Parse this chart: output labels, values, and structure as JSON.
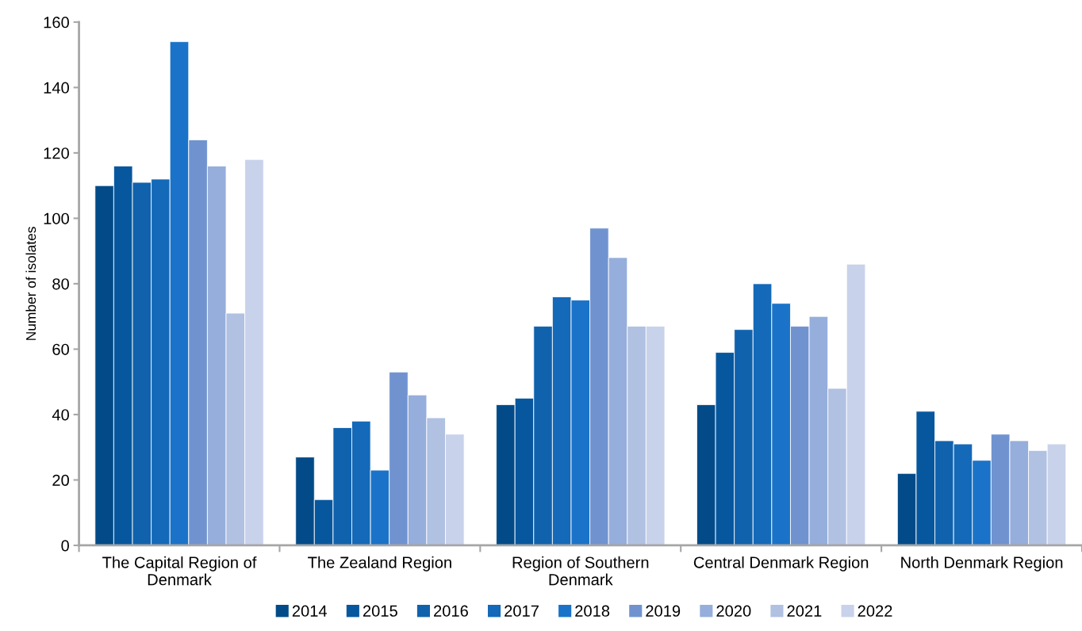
{
  "chart_data": {
    "type": "bar",
    "ylabel": "Number of isolates",
    "categories": [
      "The Capital Region of\nDenmark",
      "The Zealand Region",
      "Region of Southern\nDenmark",
      "Central Denmark Region",
      "North Denmark Region"
    ],
    "series": [
      {
        "name": "2014",
        "color": "#024b88",
        "values": [
          110,
          27,
          43,
          43,
          22
        ]
      },
      {
        "name": "2015",
        "color": "#07579e",
        "values": [
          116,
          14,
          45,
          59,
          41
        ]
      },
      {
        "name": "2016",
        "color": "#1062ad",
        "values": [
          111,
          36,
          67,
          66,
          32
        ]
      },
      {
        "name": "2017",
        "color": "#1469b8",
        "values": [
          112,
          38,
          76,
          80,
          31
        ]
      },
      {
        "name": "2018",
        "color": "#1a73c8",
        "values": [
          154,
          23,
          75,
          74,
          26
        ]
      },
      {
        "name": "2019",
        "color": "#7093d0",
        "values": [
          124,
          53,
          97,
          67,
          34
        ]
      },
      {
        "name": "2020",
        "color": "#96aedb",
        "values": [
          116,
          46,
          88,
          70,
          32
        ]
      },
      {
        "name": "2021",
        "color": "#b0c1e2",
        "values": [
          71,
          39,
          67,
          48,
          29
        ]
      },
      {
        "name": "2022",
        "color": "#c8d2ea",
        "values": [
          118,
          34,
          67,
          86,
          31
        ]
      }
    ],
    "ylim": [
      0,
      160
    ],
    "yticks": [
      0,
      20,
      40,
      60,
      80,
      100,
      120,
      140,
      160
    ],
    "grid": false,
    "legend": "bottom"
  }
}
